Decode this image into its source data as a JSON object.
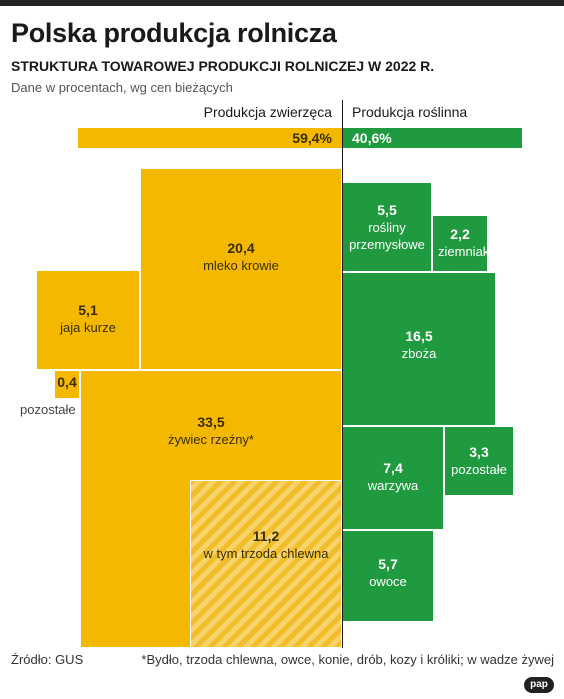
{
  "colors": {
    "animal": "#f5b800",
    "plant": "#1f9a3e",
    "accent_line": "#222222"
  },
  "header": {
    "title": "Polska produkcja rolnicza",
    "subtitle": "STRUKTURA TOWAROWEJ PRODUKCJI ROLNICZEJ W 2022 R.",
    "note": "Dane w procentach, wg cen bieżących"
  },
  "chart_data": {
    "type": "bar",
    "title": "Polska produkcja rolnicza",
    "subtitle": "STRUKTURA TOWAROWEJ PRODUKCJI ROLNICZEJ W 2022 R.",
    "unit_note": "Dane w procentach, wg cen bieżących",
    "shares": [
      {
        "name": "Produkcja zwierzęca",
        "value": 59.4,
        "label": "59,4%"
      },
      {
        "name": "Produkcja roślinna",
        "value": 40.6,
        "label": "40,6%"
      }
    ],
    "animal": [
      {
        "value": 20.4,
        "value_label": "20,4",
        "name": "mleko krowie"
      },
      {
        "value": 5.1,
        "value_label": "5,1",
        "name": "jaja kurze"
      },
      {
        "value": 0.4,
        "value_label": "0,4",
        "name": "pozostałe"
      },
      {
        "value": 33.5,
        "value_label": "33,5",
        "name": "żywiec rzeźny*"
      },
      {
        "value": 11.2,
        "value_label": "11,2",
        "name": "w tym trzoda chlewna"
      }
    ],
    "plant": [
      {
        "value": 5.5,
        "value_label": "5,5",
        "name": "rośliny przemysłowe"
      },
      {
        "value": 2.2,
        "value_label": "2,2",
        "name": "ziemniaki"
      },
      {
        "value": 16.5,
        "value_label": "16,5",
        "name": "zboża"
      },
      {
        "value": 7.4,
        "value_label": "7,4",
        "name": "warzywa"
      },
      {
        "value": 3.3,
        "value_label": "3,3",
        "name": "pozostałe"
      },
      {
        "value": 5.7,
        "value_label": "5,7",
        "name": "owoce"
      }
    ]
  },
  "footer": {
    "source": "Źródło: GUS",
    "footnote": "*Bydło, trzoda chlewna, owce, konie, drób, kozy i króliki; w wadze żywej",
    "logo": "pap"
  }
}
